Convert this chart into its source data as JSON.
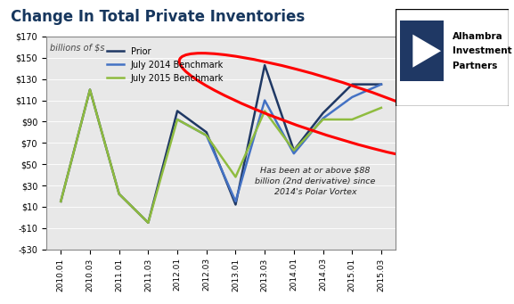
{
  "title": "Change In Total Private Inventories",
  "subtitle": "billions of $s",
  "x_labels": [
    "2010.01",
    "2010.03",
    "2011.01",
    "2011.03",
    "2012.01",
    "2012.03",
    "2013.01",
    "2013.03",
    "2014.01",
    "2014.03",
    "2015.01",
    "2015.03"
  ],
  "prior": [
    15,
    120,
    22,
    -5,
    100,
    80,
    12,
    143,
    63,
    98,
    125,
    125
  ],
  "july2014": [
    null,
    null,
    null,
    null,
    92,
    77,
    15,
    110,
    60,
    93,
    113,
    125
  ],
  "july2015": [
    15,
    120,
    22,
    -5,
    92,
    77,
    38,
    100,
    63,
    92,
    92,
    103
  ],
  "prior_color": "#1f3864",
  "july2014_color": "#4472c4",
  "july2015_color": "#8fbc3f",
  "title_color": "#17375e",
  "ylim": [
    -30,
    170
  ],
  "yticks": [
    -30,
    -10,
    10,
    30,
    50,
    70,
    90,
    110,
    130,
    150,
    170
  ],
  "ytick_labels": [
    "-$30",
    "-$10",
    "$10",
    "$30",
    "$50",
    "$70",
    "$90",
    "$110",
    "$130",
    "$150",
    "$170"
  ],
  "annotation": "Has been at or above $88\nbillion (2nd derivative) since\n2014's Polar Vortex",
  "bg_color": "#ffffff",
  "plot_bg_color": "#e8e8e8",
  "grid_color": "#ffffff"
}
